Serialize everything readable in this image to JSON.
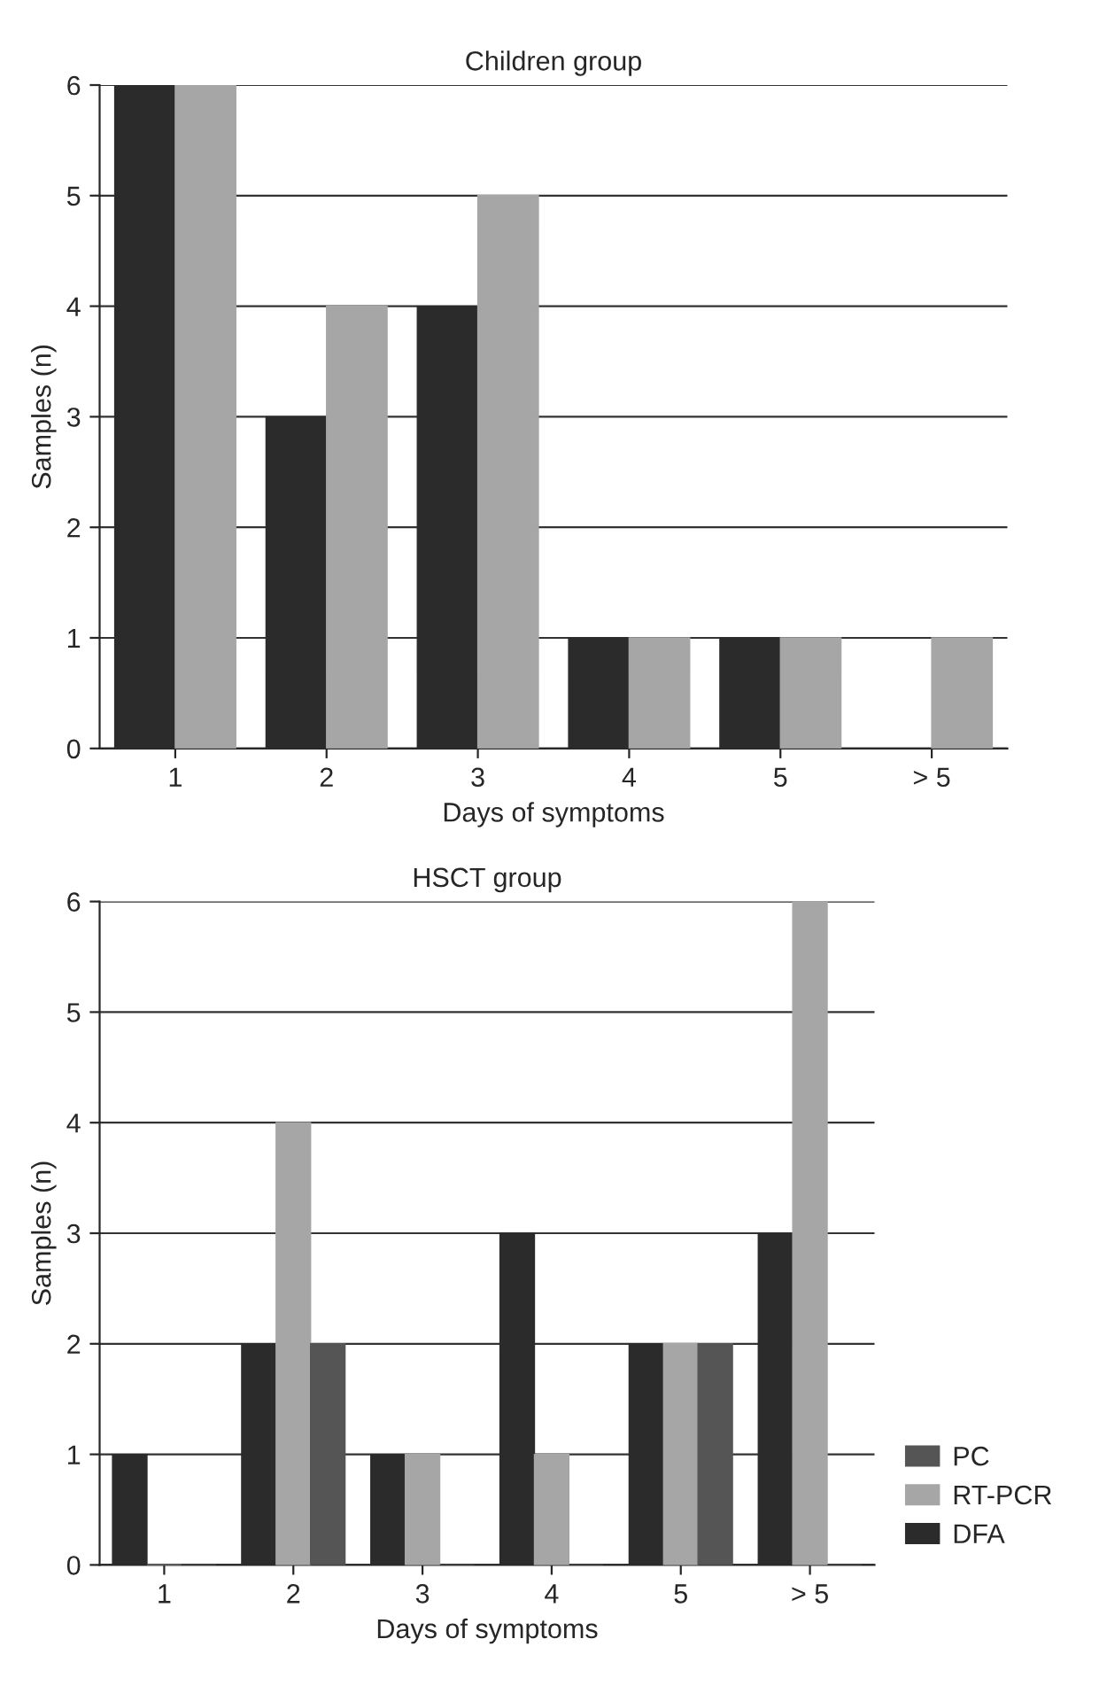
{
  "chart_data": [
    {
      "type": "bar",
      "title": "Children group",
      "xlabel": "Days of symptoms",
      "ylabel": "Samples (n)",
      "categories": [
        "1",
        "2",
        "3",
        "4",
        "5",
        "> 5"
      ],
      "ylim": [
        0,
        6
      ],
      "yticks": [
        0,
        1,
        2,
        3,
        4,
        5,
        6
      ],
      "grid": "y",
      "legend": false,
      "series": [
        {
          "color": "#2b2b2b",
          "values": [
            6,
            3,
            4,
            1,
            1,
            0
          ]
        },
        {
          "color": "#a6a6a6",
          "values": [
            6,
            4,
            5,
            1,
            1,
            1
          ]
        }
      ]
    },
    {
      "type": "bar",
      "title": "HSCT group",
      "xlabel": "Days of symptoms",
      "ylabel": "Samples (n)",
      "categories": [
        "1",
        "2",
        "3",
        "4",
        "5",
        "> 5"
      ],
      "ylim": [
        0,
        6
      ],
      "yticks": [
        0,
        1,
        2,
        3,
        4,
        5,
        6
      ],
      "grid": "y",
      "legend": "right",
      "series": [
        {
          "name": "DFA",
          "color": "#2b2b2b",
          "values": [
            1,
            2,
            1,
            3,
            2,
            3
          ]
        },
        {
          "name": "RT-PCR",
          "color": "#a6a6a6",
          "values": [
            0,
            4,
            1,
            1,
            2,
            6
          ]
        },
        {
          "name": "PC",
          "color": "#555555",
          "values": [
            0,
            2,
            0,
            0,
            2,
            0
          ]
        }
      ]
    }
  ]
}
